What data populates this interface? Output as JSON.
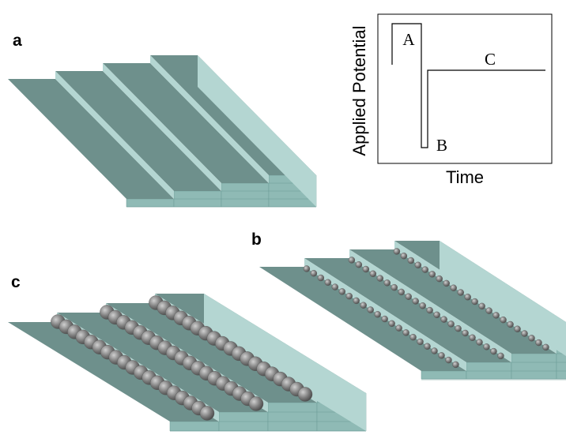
{
  "panel_labels": [
    "a",
    "b",
    "c"
  ],
  "plot": {
    "y_axis_label": "Applied Potential",
    "x_axis_label": "Time",
    "segment_labels": [
      "A",
      "B",
      "C"
    ]
  }
}
